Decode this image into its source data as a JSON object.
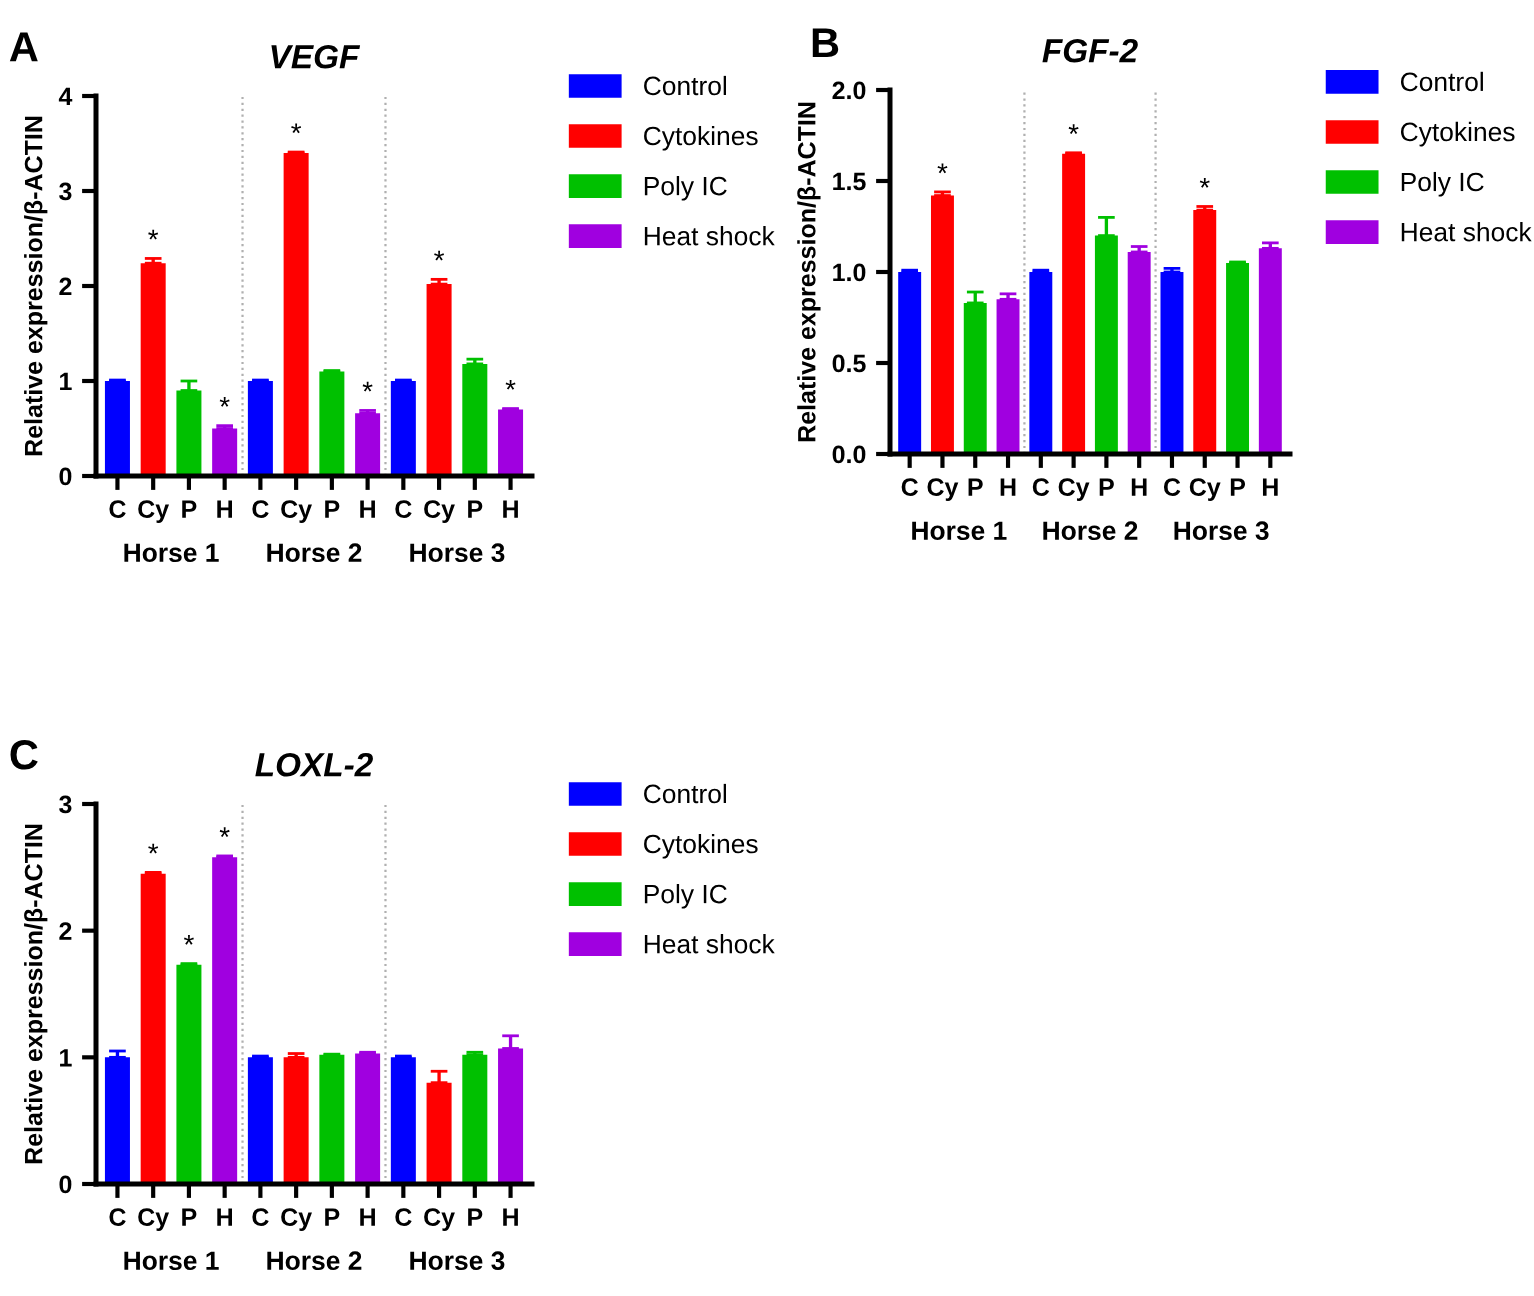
{
  "chart_data": [
    {
      "type": "bar",
      "title": "VEGF",
      "ylabel": "Relative expression/β-ACTIN",
      "categories": [
        "C",
        "Cy",
        "P",
        "H",
        "C",
        "Cy",
        "P",
        "H",
        "C",
        "Cy",
        "P",
        "H"
      ],
      "series": [
        {
          "name": "Control",
          "color": "#0000ff",
          "values": [
            1.0,
            null,
            null,
            null,
            1.0,
            null,
            null,
            null,
            1.0,
            null,
            null,
            null
          ],
          "errors": [
            0.01,
            null,
            null,
            null,
            0.01,
            null,
            null,
            null,
            0.01,
            null,
            null,
            null
          ]
        },
        {
          "name": "Cytokines",
          "color": "#ff0000",
          "values": [
            null,
            2.24,
            null,
            null,
            null,
            3.4,
            null,
            null,
            null,
            2.02,
            null,
            null
          ],
          "errors": [
            null,
            0.05,
            null,
            null,
            null,
            0.01,
            null,
            null,
            null,
            0.05,
            null,
            null
          ],
          "value_labels": [
            null,
            "*",
            null,
            null,
            null,
            "*",
            null,
            null,
            null,
            "*",
            null,
            null
          ]
        },
        {
          "name": "Poly IC",
          "color": "#00c000",
          "values": [
            null,
            null,
            0.9,
            null,
            null,
            null,
            1.1,
            null,
            null,
            null,
            1.18,
            null
          ],
          "errors": [
            null,
            null,
            0.1,
            null,
            null,
            null,
            0.01,
            null,
            null,
            null,
            0.05,
            null
          ]
        },
        {
          "name": "Heat shock",
          "color": "#a000e0",
          "values": [
            null,
            null,
            null,
            0.5,
            null,
            null,
            null,
            0.66,
            null,
            null,
            null,
            0.7
          ],
          "errors": [
            null,
            null,
            null,
            0.03,
            null,
            null,
            null,
            0.03,
            null,
            null,
            null,
            0.01
          ],
          "value_labels": [
            null,
            null,
            null,
            "*",
            null,
            null,
            null,
            "*",
            null,
            null,
            null,
            "*"
          ]
        }
      ],
      "ylim": [
        0,
        4
      ],
      "yticks": [
        0,
        1,
        2,
        3,
        4
      ],
      "legend": "right",
      "grid": false,
      "annotations": [
        "A",
        "Horse 1",
        "Horse 2",
        "Horse 3"
      ]
    },
    {
      "type": "bar",
      "title": "FGF-2",
      "ylabel": "Relative expression/β-ACTIN",
      "categories": [
        "C",
        "Cy",
        "P",
        "H",
        "C",
        "Cy",
        "P",
        "H",
        "C",
        "Cy",
        "P",
        "H"
      ],
      "series": [
        {
          "name": "Control",
          "color": "#0000ff",
          "values": [
            1.0,
            null,
            null,
            null,
            1.0,
            null,
            null,
            null,
            1.0,
            null,
            null,
            null
          ],
          "errors": [
            0.01,
            null,
            null,
            null,
            0.01,
            null,
            null,
            null,
            0.02,
            null,
            null,
            null
          ]
        },
        {
          "name": "Cytokines",
          "color": "#ff0000",
          "values": [
            null,
            1.42,
            null,
            null,
            null,
            1.65,
            null,
            null,
            null,
            1.34,
            null,
            null
          ],
          "errors": [
            null,
            0.02,
            null,
            null,
            null,
            0.005,
            null,
            null,
            null,
            0.02,
            null,
            null
          ],
          "value_labels": [
            null,
            "*",
            null,
            null,
            null,
            "*",
            null,
            null,
            null,
            "*",
            null,
            null
          ]
        },
        {
          "name": "Poly IC",
          "color": "#00c000",
          "values": [
            null,
            null,
            0.83,
            null,
            null,
            null,
            1.2,
            null,
            null,
            null,
            1.05,
            null
          ],
          "errors": [
            null,
            null,
            0.06,
            null,
            null,
            null,
            0.1,
            null,
            null,
            null,
            0.005,
            null
          ]
        },
        {
          "name": "Heat shock",
          "color": "#a000e0",
          "values": [
            null,
            null,
            null,
            0.85,
            null,
            null,
            null,
            1.11,
            null,
            null,
            null,
            1.13
          ],
          "errors": [
            null,
            null,
            null,
            0.03,
            null,
            null,
            null,
            0.03,
            null,
            null,
            null,
            0.03
          ]
        }
      ],
      "ylim": [
        0,
        2
      ],
      "yticks": [
        {
          "value": 0,
          "label": "0.0"
        },
        {
          "value": 0.5,
          "label": "0.5"
        },
        {
          "value": 1,
          "label": "1.0"
        },
        {
          "value": 1.5,
          "label": "1.5"
        },
        {
          "value": 2,
          "label": "2.0"
        }
      ],
      "legend": "right",
      "grid": false,
      "annotations": [
        "B",
        "Horse 1",
        "Horse 2",
        "Horse 3"
      ]
    },
    {
      "type": "bar",
      "title": "LOXL-2",
      "ylabel": "Relative expression/β-ACTIN",
      "categories": [
        "C",
        "Cy",
        "P",
        "H",
        "C",
        "Cy",
        "P",
        "H",
        "C",
        "Cy",
        "P",
        "H"
      ],
      "series": [
        {
          "name": "Control",
          "color": "#0000ff",
          "values": [
            1.0,
            null,
            null,
            null,
            1.0,
            null,
            null,
            null,
            1.0,
            null,
            null,
            null
          ],
          "errors": [
            0.05,
            null,
            null,
            null,
            0.01,
            null,
            null,
            null,
            0.01,
            null,
            null,
            null
          ]
        },
        {
          "name": "Cytokines",
          "color": "#ff0000",
          "values": [
            null,
            2.45,
            null,
            null,
            null,
            1.0,
            null,
            null,
            null,
            0.8,
            null,
            null
          ],
          "errors": [
            null,
            0.01,
            null,
            null,
            null,
            0.03,
            null,
            null,
            null,
            0.09,
            null,
            null
          ],
          "value_labels": [
            null,
            "*",
            null,
            null,
            null,
            null,
            null,
            null,
            null,
            null,
            null,
            null
          ]
        },
        {
          "name": "Poly IC",
          "color": "#00c000",
          "values": [
            null,
            null,
            1.73,
            null,
            null,
            null,
            1.02,
            null,
            null,
            null,
            1.02,
            null
          ],
          "errors": [
            null,
            null,
            0.01,
            null,
            null,
            null,
            0.005,
            null,
            null,
            null,
            0.02,
            null
          ],
          "value_labels": [
            null,
            null,
            "*",
            null,
            null,
            null,
            null,
            null,
            null,
            null,
            null,
            null
          ]
        },
        {
          "name": "Heat shock",
          "color": "#a000e0",
          "values": [
            null,
            null,
            null,
            2.58,
            null,
            null,
            null,
            1.03,
            null,
            null,
            null,
            1.07
          ],
          "errors": [
            null,
            null,
            null,
            0.01,
            null,
            null,
            null,
            0.01,
            null,
            null,
            null,
            0.1
          ],
          "value_labels": [
            null,
            null,
            null,
            "*",
            null,
            null,
            null,
            null,
            null,
            null,
            null,
            null
          ]
        }
      ],
      "ylim": [
        0,
        3
      ],
      "yticks": [
        0,
        1,
        2,
        3
      ],
      "legend": "right",
      "grid": false,
      "annotations": [
        "C",
        "Horse 1",
        "Horse 2",
        "Horse 3"
      ]
    }
  ]
}
